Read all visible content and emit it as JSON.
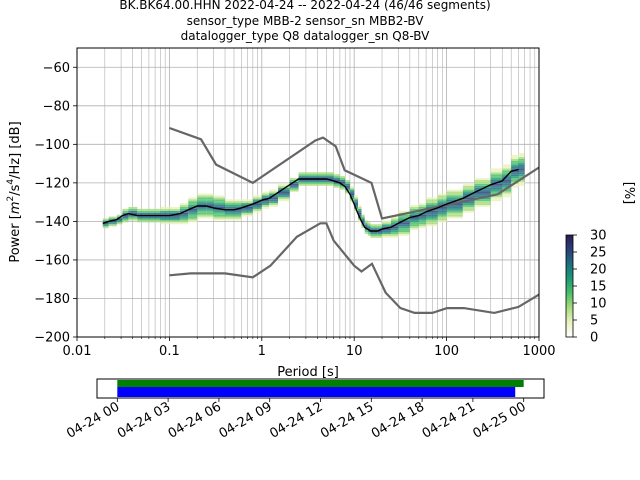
{
  "title_lines": [
    "BK.BK64.00.HHN   2022-04-24 -- 2022-04-24  (46/46 segments)",
    "sensor_type MBB-2 sensor_sn MBB2-BV",
    "datalogger_type Q8 datalogger_sn Q8-BV"
  ],
  "chart_data": {
    "type": "heatmap",
    "xlabel": "Period [s]",
    "ylabel_prefix": "Power [",
    "ylabel_m": "m",
    "ylabel_m_exp": "2",
    "ylabel_s": "/s",
    "ylabel_s_exp": "4",
    "ylabel_suffix": "/Hz] [dB]",
    "x_scale": "log",
    "xlim": [
      0.01,
      1000
    ],
    "ylim": [
      -200,
      -50
    ],
    "x_tick_labels": [
      "0.01",
      "0.1",
      "1",
      "10",
      "100",
      "1000"
    ],
    "x_ticks": [
      0.01,
      0.1,
      1,
      10,
      100,
      1000
    ],
    "y_tick_labels": [
      "−60",
      "−80",
      "−100",
      "−120",
      "−140",
      "−160",
      "−180",
      "−200"
    ],
    "y_ticks": [
      -60,
      -80,
      -100,
      -120,
      -140,
      -160,
      -180,
      -200
    ],
    "grid": true,
    "colorbar": {
      "label": "[%]",
      "range": [
        0,
        30
      ],
      "tick_labels": [
        "0",
        "5",
        "10",
        "15",
        "20",
        "25",
        "30"
      ],
      "ticks": [
        0,
        5,
        10,
        15,
        20,
        25,
        30
      ],
      "colormap": [
        "#ffffff",
        "#e9f3c0",
        "#a9dc7e",
        "#4bbf6b",
        "#1f9a74",
        "#1e6f80",
        "#2b3f7a",
        "#2a1e4f"
      ]
    },
    "mode_line": {
      "name": "mode",
      "color": "#000000",
      "period": [
        0.019,
        0.022,
        0.027,
        0.031,
        0.036,
        0.045,
        0.06,
        0.08,
        0.1,
        0.13,
        0.16,
        0.2,
        0.25,
        0.3,
        0.4,
        0.5,
        0.6,
        0.8,
        1.0,
        1.2,
        1.5,
        2.0,
        2.5,
        3.0,
        4.0,
        5.0,
        6.0,
        7.0,
        8.0,
        9.0,
        10.0,
        11.0,
        12.0,
        13.0,
        14.0,
        15.0,
        16.0,
        18.0,
        20.0,
        25.0,
        30.0,
        40.0,
        50.0,
        60.0,
        80.0,
        100.0,
        150.0,
        200.0,
        300.0,
        400.0,
        500.0,
        600.0
      ],
      "power": [
        -141,
        -140,
        -139,
        -137,
        -136,
        -137,
        -137,
        -137,
        -137,
        -136,
        -134,
        -132,
        -132,
        -133,
        -134,
        -134,
        -133,
        -131,
        -129,
        -128,
        -125,
        -121,
        -118,
        -118,
        -118,
        -118,
        -119,
        -120,
        -122,
        -126,
        -131,
        -136,
        -140,
        -143,
        -144,
        -145,
        -145,
        -145,
        -144,
        -143,
        -141,
        -138,
        -137,
        -135,
        -133,
        -131,
        -128,
        -125,
        -121,
        -119,
        -114,
        -113
      ]
    },
    "heatmap_band": {
      "period": [
        0.019,
        0.022,
        0.027,
        0.031,
        0.036,
        0.045,
        0.06,
        0.08,
        0.1,
        0.13,
        0.16,
        0.2,
        0.25,
        0.3,
        0.4,
        0.5,
        0.6,
        0.8,
        1.0,
        1.2,
        1.5,
        2.0,
        2.5,
        3.0,
        4.0,
        5.0,
        6.0,
        7.0,
        8.0,
        9.0,
        10.0,
        11.0,
        12.0,
        13.0,
        14.0,
        15.0,
        16.0,
        18.0,
        20.0,
        25.0,
        30.0,
        40.0,
        50.0,
        60.0,
        80.0,
        100.0,
        150.0,
        200.0,
        300.0,
        400.0,
        500.0,
        600.0
      ],
      "spread_db": [
        2,
        2,
        2,
        3,
        3,
        3,
        3,
        4,
        4,
        5,
        6,
        6,
        6,
        6,
        5,
        5,
        4,
        4,
        4,
        4,
        4,
        3,
        3,
        3,
        3,
        3,
        3,
        3,
        3,
        4,
        4,
        4,
        3,
        3,
        3,
        3,
        3,
        3,
        4,
        5,
        6,
        6,
        6,
        7,
        7,
        7,
        7,
        7,
        8,
        8,
        8,
        8
      ]
    },
    "noise_models": [
      {
        "name": "NHNM",
        "color": "#666666",
        "period": [
          0.1,
          0.22,
          0.32,
          0.8,
          3.8,
          4.6,
          6.3,
          7.9,
          15.4,
          20.0,
          354.8,
          1000
        ],
        "power": [
          -91.5,
          -97.4,
          -110.5,
          -120.0,
          -98.0,
          -96.5,
          -101.0,
          -113.5,
          -120.0,
          -138.5,
          -126.0,
          -112
        ]
      },
      {
        "name": "NLNM",
        "color": "#666666",
        "period": [
          0.1,
          0.17,
          0.4,
          0.8,
          1.24,
          2.4,
          4.3,
          5.0,
          6.0,
          10.0,
          12.0,
          15.6,
          21.9,
          31.6,
          45.0,
          70.0,
          101.0,
          154.0,
          328.0,
          600.0,
          1000
        ],
        "power": [
          -168,
          -167,
          -167,
          -169,
          -163,
          -148,
          -141,
          -141,
          -150,
          -163,
          -166,
          -162,
          -177,
          -185,
          -187.5,
          -187.5,
          -185,
          -185,
          -187.5,
          -184.4,
          -178
        ]
      }
    ],
    "time_axis": {
      "tick_labels": [
        "04-24 00",
        "04-24 03",
        "04-24 06",
        "04-24 09",
        "04-24 12",
        "04-24 15",
        "04-24 18",
        "04-24 21",
        "04-25 00"
      ],
      "ticks_hours": [
        0,
        3,
        6,
        9,
        12,
        15,
        18,
        21,
        24
      ],
      "xlim_hours": [
        -1.2,
        25.2
      ],
      "data_coverage": {
        "start_hour": 0,
        "end_hour": 24,
        "color": "#008000"
      },
      "psd_coverage": {
        "start_hour": 0,
        "end_hour": 23.5,
        "color": "#0000ff"
      }
    }
  }
}
